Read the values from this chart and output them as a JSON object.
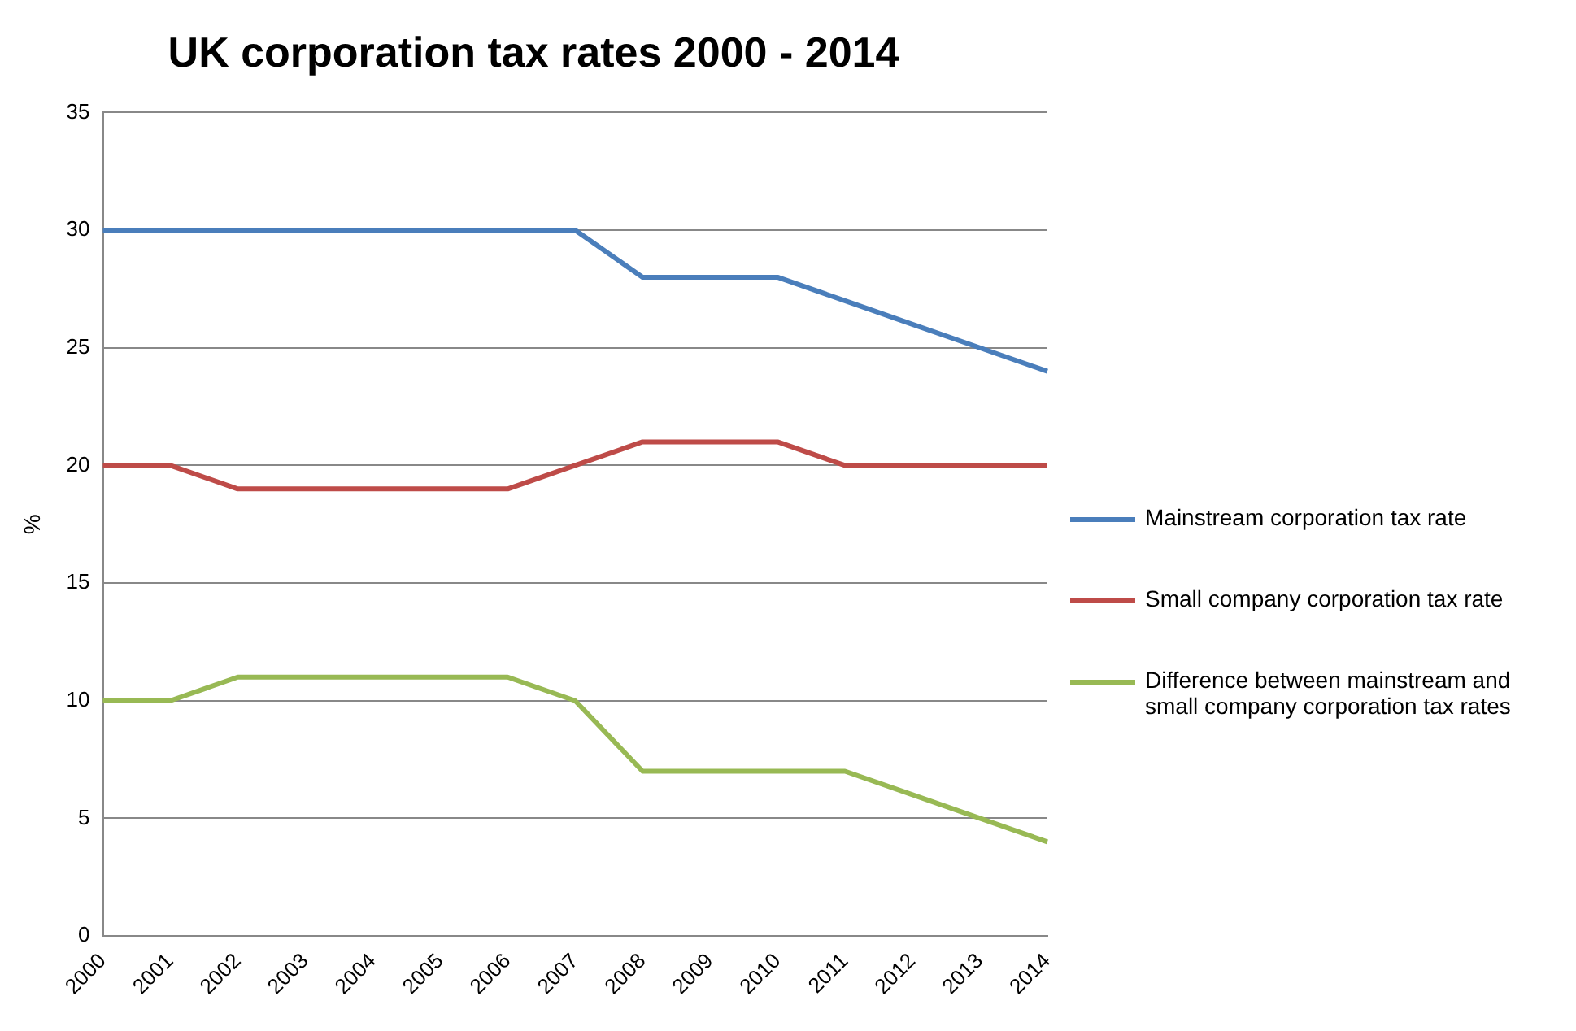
{
  "chart_data": {
    "type": "line",
    "title": "UK corporation tax rates 2000 - 2014",
    "ylabel": "%",
    "categories": [
      "2000",
      "2001",
      "2002",
      "2003",
      "2004",
      "2005",
      "2006",
      "2007",
      "2008",
      "2009",
      "2010",
      "2011",
      "2012",
      "2013",
      "2014"
    ],
    "series": [
      {
        "name": "Mainstream corporation tax rate",
        "color": "#4a7ebb",
        "values": [
          30,
          30,
          30,
          30,
          30,
          30,
          30,
          30,
          28,
          28,
          28,
          27,
          26,
          25,
          24
        ]
      },
      {
        "name": "Small company corporation tax rate",
        "color": "#be4b48",
        "values": [
          20,
          20,
          19,
          19,
          19,
          19,
          19,
          20,
          21,
          21,
          21,
          20,
          20,
          20,
          20
        ]
      },
      {
        "name": "Difference between mainstream and small company corporation tax rates",
        "color": "#98b954",
        "values": [
          10,
          10,
          11,
          11,
          11,
          11,
          11,
          10,
          7,
          7,
          7,
          7,
          6,
          5,
          4
        ]
      }
    ],
    "ylim": [
      0,
      35
    ],
    "yticks": [
      0,
      5,
      10,
      15,
      20,
      25,
      30,
      35
    ],
    "grid": "y",
    "legend": "right",
    "marker": "none",
    "line_style": "solid"
  }
}
